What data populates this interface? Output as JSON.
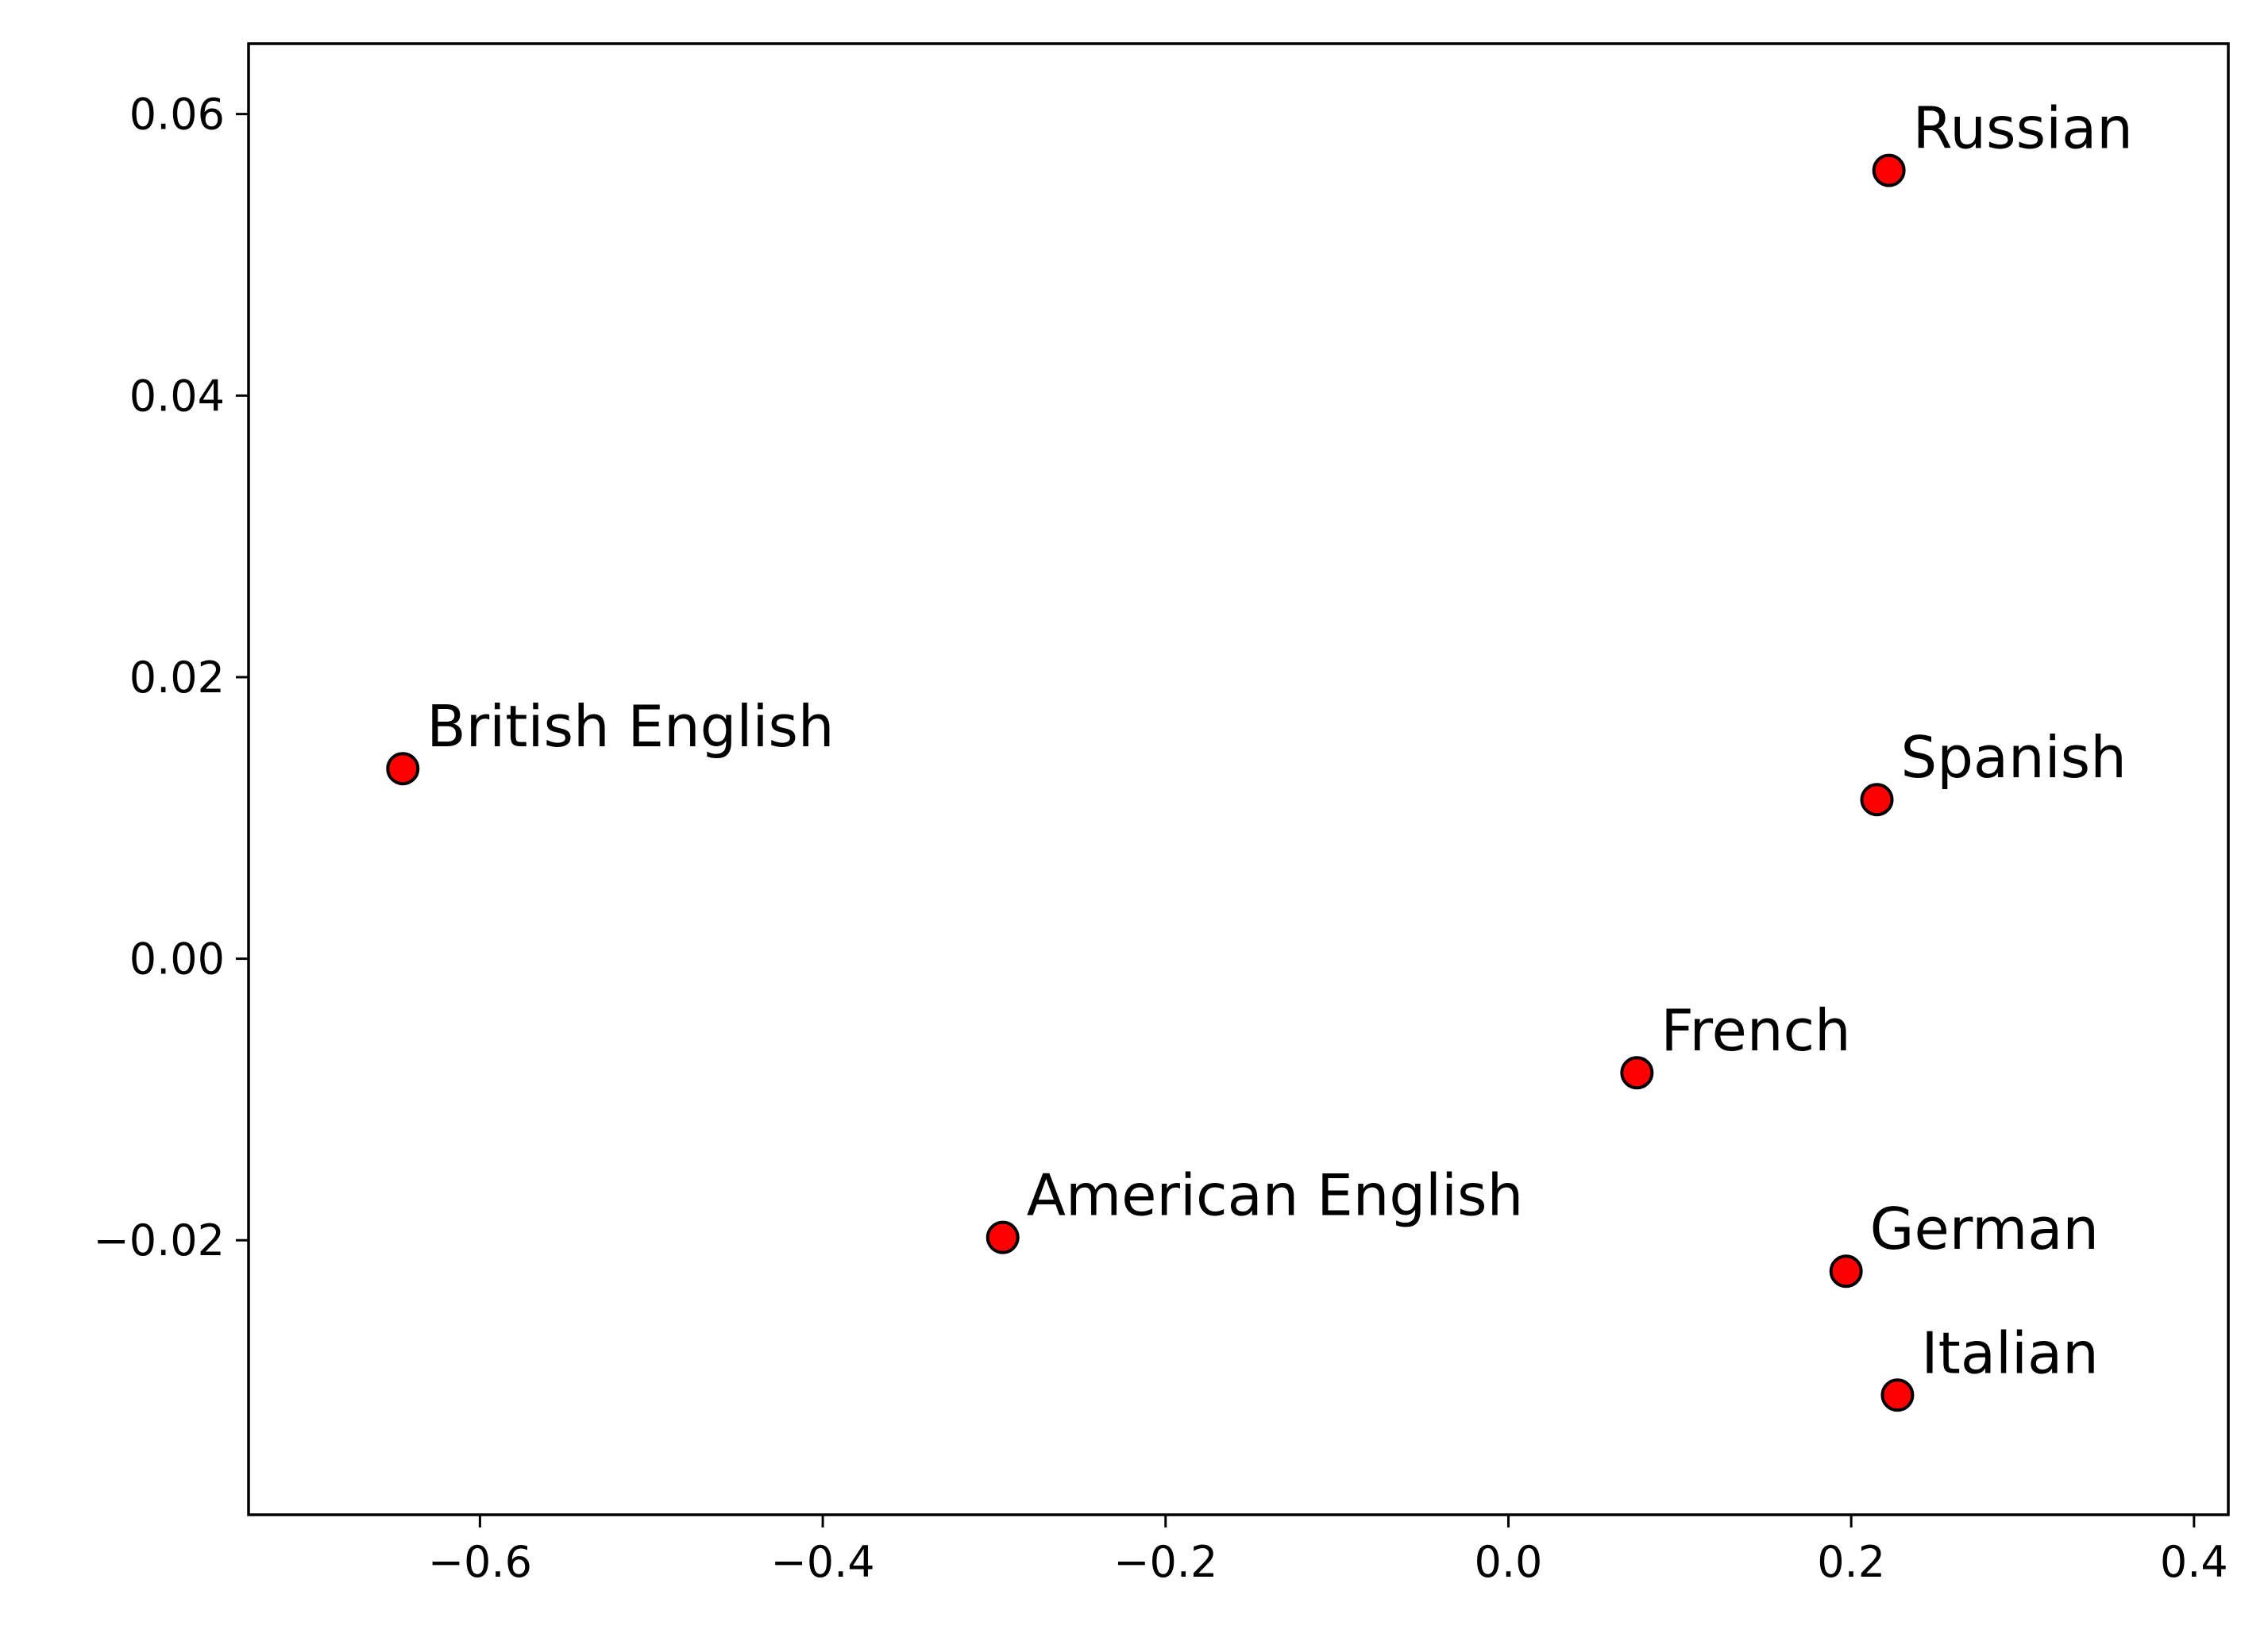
{
  "chart_data": {
    "type": "scatter",
    "title": "",
    "xlabel": "",
    "ylabel": "",
    "xlim": [
      -0.735,
      0.42
    ],
    "ylim": [
      -0.0395,
      0.065
    ],
    "x_ticks": [
      {
        "value": -0.6,
        "label": "−0.6"
      },
      {
        "value": -0.4,
        "label": "−0.4"
      },
      {
        "value": -0.2,
        "label": "−0.2"
      },
      {
        "value": 0.0,
        "label": "0.0"
      },
      {
        "value": 0.2,
        "label": "0.2"
      },
      {
        "value": 0.4,
        "label": "0.4"
      }
    ],
    "y_ticks": [
      {
        "value": 0.06,
        "label": "0.06"
      },
      {
        "value": 0.04,
        "label": "0.04"
      },
      {
        "value": 0.02,
        "label": "0.02"
      },
      {
        "value": 0.0,
        "label": "0.00"
      },
      {
        "value": -0.02,
        "label": "−0.02"
      }
    ],
    "grid": false,
    "marker_color": "#ff0000",
    "marker_edge_color": "#000000",
    "points": [
      {
        "label": "Russian",
        "x": 0.222,
        "y": 0.056
      },
      {
        "label": "British English",
        "x": -0.645,
        "y": 0.0135
      },
      {
        "label": "Spanish",
        "x": 0.215,
        "y": 0.0113
      },
      {
        "label": "French",
        "x": 0.075,
        "y": -0.0081
      },
      {
        "label": "American English",
        "x": -0.295,
        "y": -0.0198
      },
      {
        "label": "German",
        "x": 0.197,
        "y": -0.0222
      },
      {
        "label": "Italian",
        "x": 0.227,
        "y": -0.031
      }
    ]
  }
}
